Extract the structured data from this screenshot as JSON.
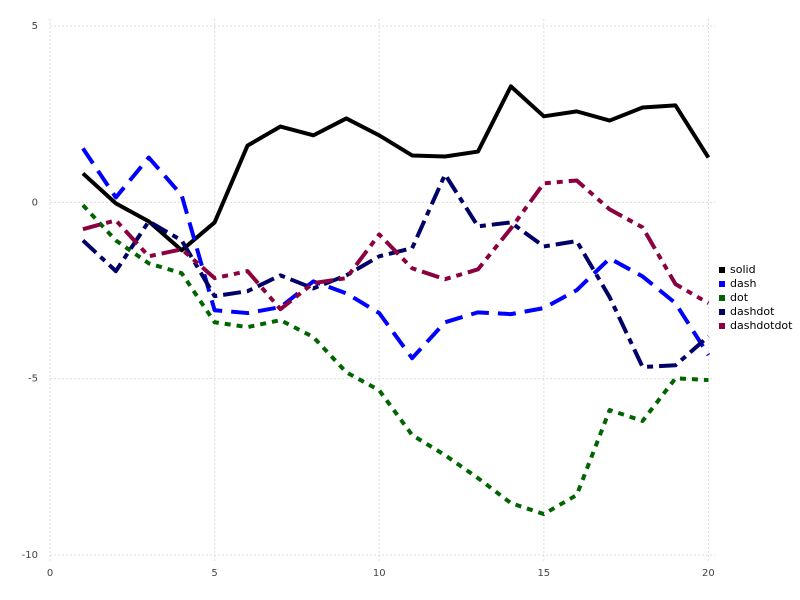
{
  "chart_data": {
    "type": "line",
    "x": [
      1,
      2,
      3,
      4,
      5,
      6,
      7,
      8,
      9,
      10,
      11,
      12,
      13,
      14,
      15,
      16,
      17,
      18,
      19,
      20
    ],
    "series": [
      {
        "name": "solid",
        "color": "#000000",
        "linestyle": "solid",
        "values": [
          0.82,
          -0.03,
          -0.54,
          -1.36,
          -0.57,
          1.61,
          2.15,
          1.9,
          2.38,
          1.9,
          1.33,
          1.3,
          1.44,
          3.29,
          2.44,
          2.58,
          2.32,
          2.69,
          2.75,
          1.27
        ]
      },
      {
        "name": "dash",
        "color": "#0000ff",
        "linestyle": "dash",
        "values": [
          1.53,
          0.14,
          1.27,
          0.2,
          -3.06,
          -3.14,
          -2.97,
          -2.24,
          -2.58,
          -3.14,
          -4.42,
          -3.4,
          -3.12,
          -3.17,
          -3.0,
          -2.49,
          -1.59,
          -2.1,
          -2.86,
          -4.33
        ]
      },
      {
        "name": "dot",
        "color": "#006400",
        "linestyle": "dot",
        "values": [
          -0.08,
          -1.08,
          -1.73,
          -2.01,
          -3.4,
          -3.54,
          -3.34,
          -3.82,
          -4.82,
          -5.33,
          -6.6,
          -7.17,
          -7.82,
          -8.53,
          -8.84,
          -8.3,
          -5.89,
          -6.2,
          -4.99,
          -5.04
        ]
      },
      {
        "name": "dashdot",
        "color": "#000066",
        "linestyle": "dashdot",
        "values": [
          -1.08,
          -1.95,
          -0.54,
          -1.08,
          -2.66,
          -2.52,
          -2.07,
          -2.44,
          -2.07,
          -1.53,
          -1.3,
          0.79,
          -0.68,
          -0.57,
          -1.25,
          -1.1,
          -2.69,
          -4.67,
          -4.62,
          -3.8
        ]
      },
      {
        "name": "dashdotdot",
        "color": "#8b0040",
        "linestyle": "dashdotdot",
        "values": [
          -0.76,
          -0.51,
          -1.53,
          -1.33,
          -2.15,
          -1.95,
          -3.03,
          -2.29,
          -2.15,
          -0.91,
          -1.87,
          -2.18,
          -1.9,
          -0.74,
          0.54,
          0.62,
          -0.2,
          -0.71,
          -2.32,
          -2.86
        ]
      }
    ],
    "xlim": [
      0,
      20.2
    ],
    "ylim": [
      -10.2,
      5.2
    ],
    "xticks": [
      0,
      5,
      10,
      15,
      20
    ],
    "yticks": [
      -10,
      -5,
      0,
      5
    ],
    "grid": true,
    "legend": "right"
  }
}
